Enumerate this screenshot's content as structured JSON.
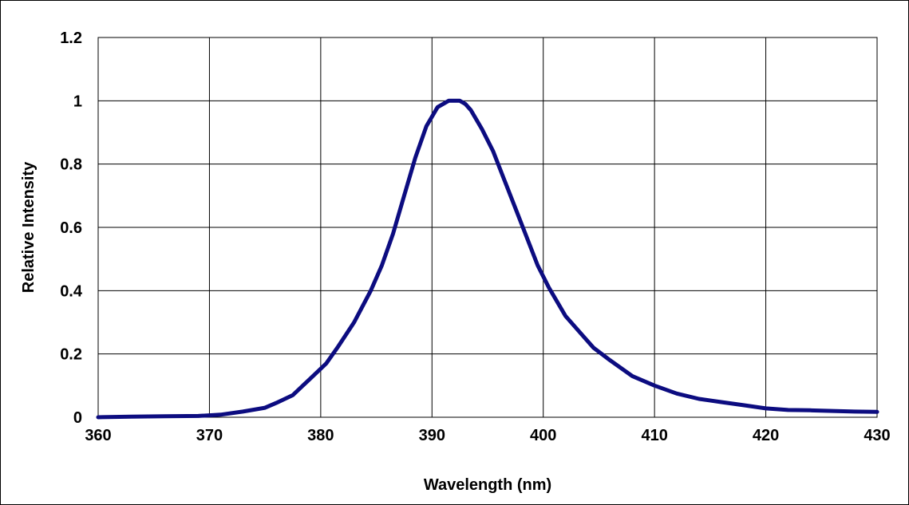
{
  "chart_data": {
    "type": "line",
    "xlabel": "Wavelength (nm)",
    "ylabel": "Relative Intensity",
    "xlim": [
      360,
      430
    ],
    "ylim": [
      0,
      1.2
    ],
    "x_ticks": [
      "360",
      "370",
      "380",
      "390",
      "400",
      "410",
      "420",
      "430"
    ],
    "y_ticks": [
      "0",
      "0.2",
      "0.4",
      "0.6",
      "0.8",
      "1",
      "1.2"
    ],
    "grid": true,
    "line_color": "#0c0c80",
    "series": [
      {
        "x": [
          360,
          363,
          366,
          369,
          371,
          373,
          375,
          376,
          377.5,
          379,
          380.5,
          381.5,
          383,
          384.5,
          385.5,
          386.5,
          387.5,
          388.5,
          389.5,
          390.5,
          391.5,
          392.5,
          393,
          393.5,
          394.5,
          395.5,
          396.5,
          397.5,
          398.5,
          399.5,
          400.5,
          402,
          403.5,
          404.5,
          406,
          408,
          410,
          412,
          414,
          416,
          418,
          420,
          422,
          424,
          426,
          428,
          430
        ],
        "y": [
          0,
          0.002,
          0.003,
          0.004,
          0.008,
          0.018,
          0.03,
          0.045,
          0.07,
          0.12,
          0.17,
          0.22,
          0.3,
          0.4,
          0.48,
          0.58,
          0.7,
          0.82,
          0.92,
          0.98,
          1.0,
          1.0,
          0.99,
          0.97,
          0.91,
          0.84,
          0.75,
          0.66,
          0.57,
          0.48,
          0.41,
          0.32,
          0.26,
          0.22,
          0.18,
          0.13,
          0.1,
          0.075,
          0.058,
          0.048,
          0.038,
          0.028,
          0.023,
          0.022,
          0.02,
          0.018,
          0.017
        ]
      }
    ]
  }
}
